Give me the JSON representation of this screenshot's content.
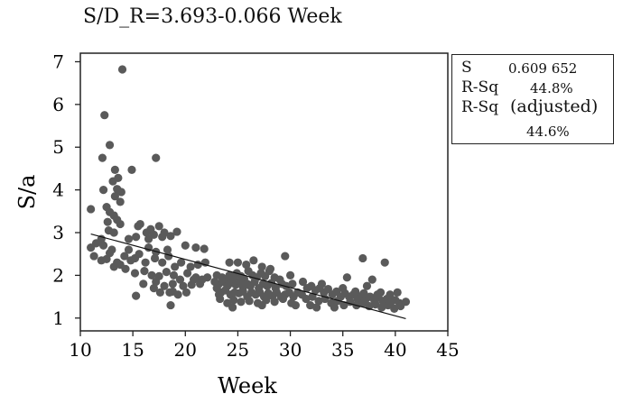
{
  "chart_data": {
    "type": "scatter",
    "title": "S/D_R=3.693-0.066 Week",
    "xlabel": "Week",
    "ylabel": "S/a",
    "xlim": [
      10,
      45
    ],
    "ylim": [
      0.7,
      7.2
    ],
    "xticks": [
      10,
      15,
      20,
      25,
      30,
      35,
      40,
      45
    ],
    "yticks": [
      1,
      2,
      3,
      4,
      5,
      6,
      7
    ],
    "fit_line": {
      "intercept": 3.693,
      "slope": -0.066,
      "x_range": [
        11,
        41
      ]
    },
    "points": [
      [
        14.0,
        6.82
      ],
      [
        12.3,
        5.75
      ],
      [
        12.8,
        5.05
      ],
      [
        14.9,
        4.47
      ],
      [
        17.2,
        4.75
      ],
      [
        12.1,
        4.75
      ],
      [
        13.3,
        4.47
      ],
      [
        13.6,
        4.28
      ],
      [
        13.1,
        4.2
      ],
      [
        13.5,
        4.02
      ],
      [
        12.2,
        4.0
      ],
      [
        13.9,
        3.95
      ],
      [
        13.3,
        3.85
      ],
      [
        13.8,
        3.72
      ],
      [
        11.0,
        3.55
      ],
      [
        12.5,
        3.6
      ],
      [
        12.8,
        3.48
      ],
      [
        13.2,
        3.4
      ],
      [
        12.6,
        3.25
      ],
      [
        13.5,
        3.3
      ],
      [
        13.8,
        3.2
      ],
      [
        12.7,
        3.05
      ],
      [
        13.2,
        3.0
      ],
      [
        15.5,
        3.15
      ],
      [
        15.7,
        3.2
      ],
      [
        16.7,
        3.08
      ],
      [
        17.5,
        3.15
      ],
      [
        16.3,
        3.0
      ],
      [
        18.0,
        3.0
      ],
      [
        19.2,
        3.02
      ],
      [
        17.0,
        2.95
      ],
      [
        16.5,
        2.85
      ],
      [
        17.8,
        2.9
      ],
      [
        18.6,
        2.92
      ],
      [
        15.3,
        2.9
      ],
      [
        14.6,
        2.85
      ],
      [
        12.0,
        2.85
      ],
      [
        11.5,
        2.75
      ],
      [
        12.2,
        2.7
      ],
      [
        13.0,
        2.6
      ],
      [
        12.8,
        2.52
      ],
      [
        14.6,
        2.6
      ],
      [
        16.5,
        2.65
      ],
      [
        17.2,
        2.55
      ],
      [
        18.3,
        2.6
      ],
      [
        20.0,
        2.7
      ],
      [
        21.0,
        2.65
      ],
      [
        21.8,
        2.62
      ],
      [
        11.0,
        2.65
      ],
      [
        11.3,
        2.45
      ],
      [
        12.0,
        2.35
      ],
      [
        12.5,
        2.38
      ],
      [
        13.5,
        2.3
      ],
      [
        13.8,
        2.25
      ],
      [
        13.2,
        2.2
      ],
      [
        14.2,
        2.45
      ],
      [
        14.8,
        2.35
      ],
      [
        15.2,
        2.4
      ],
      [
        15.6,
        2.5
      ],
      [
        16.2,
        2.3
      ],
      [
        17.1,
        2.4
      ],
      [
        17.8,
        2.3
      ],
      [
        18.4,
        2.45
      ],
      [
        19.0,
        2.2
      ],
      [
        19.6,
        2.3
      ],
      [
        20.5,
        2.2
      ],
      [
        21.2,
        2.25
      ],
      [
        21.9,
        2.3
      ],
      [
        14.3,
        2.15
      ],
      [
        15.2,
        2.05
      ],
      [
        16.1,
        2.1
      ],
      [
        16.8,
        2.0
      ],
      [
        17.5,
        1.98
      ],
      [
        18.2,
        2.08
      ],
      [
        18.9,
        2.0
      ],
      [
        19.5,
        1.9
      ],
      [
        20.2,
        2.05
      ],
      [
        21.0,
        1.95
      ],
      [
        21.6,
        1.9
      ],
      [
        16.0,
        1.8
      ],
      [
        17.2,
        1.85
      ],
      [
        18.0,
        1.75
      ],
      [
        18.8,
        1.8
      ],
      [
        19.8,
        1.75
      ],
      [
        20.6,
        1.78
      ],
      [
        21.4,
        1.8
      ],
      [
        22.1,
        1.95
      ],
      [
        17.0,
        1.7
      ],
      [
        18.5,
        1.6
      ],
      [
        15.3,
        1.52
      ],
      [
        17.6,
        1.6
      ],
      [
        19.3,
        1.55
      ],
      [
        20.1,
        1.6
      ],
      [
        18.6,
        1.3
      ],
      [
        18.8,
        1.62
      ],
      [
        20.8,
        1.9
      ],
      [
        23.0,
        2.0
      ],
      [
        23.5,
        1.95
      ],
      [
        23.9,
        1.9
      ],
      [
        24.2,
        2.0
      ],
      [
        24.6,
        1.95
      ],
      [
        24.9,
        2.05
      ],
      [
        25.3,
        1.98
      ],
      [
        25.6,
        1.92
      ],
      [
        26.0,
        2.1
      ],
      [
        26.4,
        2.0
      ],
      [
        26.8,
        1.95
      ],
      [
        27.2,
        2.05
      ],
      [
        27.6,
        1.98
      ],
      [
        28.0,
        2.1
      ],
      [
        28.5,
        1.95
      ],
      [
        29.0,
        1.9
      ],
      [
        23.2,
        1.8
      ],
      [
        23.6,
        1.85
      ],
      [
        24.0,
        1.75
      ],
      [
        24.4,
        1.82
      ],
      [
        24.8,
        1.78
      ],
      [
        25.2,
        1.85
      ],
      [
        25.5,
        1.72
      ],
      [
        25.9,
        1.8
      ],
      [
        26.2,
        1.75
      ],
      [
        26.6,
        1.85
      ],
      [
        27.0,
        1.7
      ],
      [
        27.4,
        1.8
      ],
      [
        27.8,
        1.75
      ],
      [
        28.2,
        1.82
      ],
      [
        28.6,
        1.7
      ],
      [
        29.2,
        1.8
      ],
      [
        29.6,
        1.75
      ],
      [
        30.2,
        1.8
      ],
      [
        23.4,
        1.6
      ],
      [
        23.8,
        1.65
      ],
      [
        24.3,
        1.55
      ],
      [
        24.7,
        1.6
      ],
      [
        25.1,
        1.58
      ],
      [
        25.5,
        1.62
      ],
      [
        25.9,
        1.5
      ],
      [
        26.3,
        1.6
      ],
      [
        26.7,
        1.55
      ],
      [
        27.1,
        1.6
      ],
      [
        27.5,
        1.5
      ],
      [
        27.9,
        1.58
      ],
      [
        28.3,
        1.52
      ],
      [
        28.7,
        1.6
      ],
      [
        29.1,
        1.5
      ],
      [
        29.5,
        1.55
      ],
      [
        29.9,
        1.6
      ],
      [
        30.3,
        1.5
      ],
      [
        30.7,
        1.6
      ],
      [
        31.1,
        1.55
      ],
      [
        23.3,
        1.45
      ],
      [
        24.0,
        1.35
      ],
      [
        24.6,
        1.42
      ],
      [
        25.3,
        1.38
      ],
      [
        26.1,
        1.4
      ],
      [
        26.9,
        1.35
      ],
      [
        27.7,
        1.42
      ],
      [
        28.5,
        1.38
      ],
      [
        29.3,
        1.45
      ],
      [
        30.1,
        1.35
      ],
      [
        24.5,
        1.25
      ],
      [
        27.3,
        1.3
      ],
      [
        30.5,
        1.3
      ],
      [
        22.8,
        1.85
      ],
      [
        23.0,
        1.7
      ],
      [
        23.2,
        1.55
      ],
      [
        24.2,
        2.3
      ],
      [
        25.0,
        2.3
      ],
      [
        25.8,
        2.25
      ],
      [
        26.5,
        2.35
      ],
      [
        27.3,
        2.2
      ],
      [
        28.1,
        2.15
      ],
      [
        29.5,
        2.45
      ],
      [
        30.0,
        2.0
      ],
      [
        31.2,
        1.85
      ],
      [
        31.6,
        1.7
      ],
      [
        32.0,
        1.75
      ],
      [
        32.4,
        1.65
      ],
      [
        32.8,
        1.7
      ],
      [
        33.2,
        1.6
      ],
      [
        33.6,
        1.68
      ],
      [
        34.0,
        1.55
      ],
      [
        34.4,
        1.62
      ],
      [
        34.8,
        1.5
      ],
      [
        35.2,
        1.58
      ],
      [
        35.6,
        1.5
      ],
      [
        36.0,
        1.55
      ],
      [
        36.4,
        1.45
      ],
      [
        36.8,
        1.52
      ],
      [
        37.2,
        1.45
      ],
      [
        37.6,
        1.5
      ],
      [
        38.0,
        1.42
      ],
      [
        38.4,
        1.48
      ],
      [
        38.8,
        1.4
      ],
      [
        39.2,
        1.45
      ],
      [
        39.6,
        1.38
      ],
      [
        40.0,
        1.42
      ],
      [
        40.4,
        1.35
      ],
      [
        31.5,
        1.45
      ],
      [
        32.1,
        1.5
      ],
      [
        32.7,
        1.4
      ],
      [
        33.3,
        1.45
      ],
      [
        33.9,
        1.35
      ],
      [
        34.5,
        1.4
      ],
      [
        35.1,
        1.3
      ],
      [
        35.7,
        1.38
      ],
      [
        36.3,
        1.3
      ],
      [
        36.9,
        1.35
      ],
      [
        37.5,
        1.28
      ],
      [
        38.1,
        1.32
      ],
      [
        38.7,
        1.25
      ],
      [
        39.3,
        1.3
      ],
      [
        39.9,
        1.22
      ],
      [
        40.5,
        1.28
      ],
      [
        41.0,
        1.38
      ],
      [
        32.5,
        1.25
      ],
      [
        34.2,
        1.25
      ],
      [
        35.4,
        1.95
      ],
      [
        36.9,
        2.4
      ],
      [
        37.3,
        1.75
      ],
      [
        37.8,
        1.9
      ],
      [
        38.6,
        1.6
      ],
      [
        39.0,
        2.3
      ],
      [
        39.5,
        1.55
      ],
      [
        40.2,
        1.6
      ],
      [
        33.0,
        1.8
      ],
      [
        35.0,
        1.7
      ],
      [
        36.2,
        1.62
      ],
      [
        31.9,
        1.3
      ],
      [
        37.0,
        1.58
      ],
      [
        38.3,
        1.55
      ]
    ]
  },
  "stats_box": {
    "s_label": "S",
    "s_value": "0.609 652",
    "rsq_label": "R-Sq",
    "rsq_value": "44.8%",
    "rsq_adj_label": "R-Sq",
    "rsq_adj_suffix": "(adjusted)",
    "rsq_adj_value": "44.6%"
  }
}
